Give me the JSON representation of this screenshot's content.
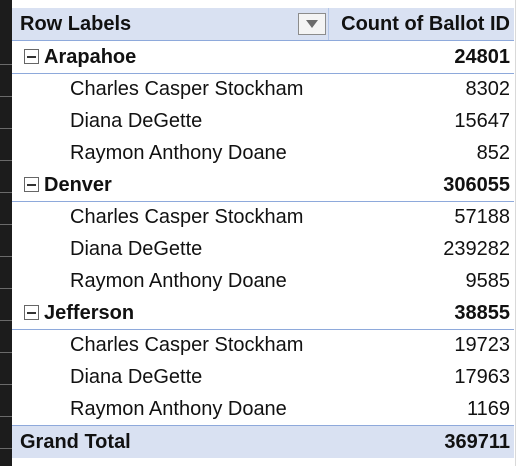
{
  "pivot": {
    "header": {
      "row_labels": "Row Labels",
      "value_field": "Count of Ballot ID"
    },
    "groups": [
      {
        "name": "Arapahoe",
        "total": "24801",
        "items": [
          {
            "label": "Charles Casper Stockham",
            "value": "8302"
          },
          {
            "label": "Diana DeGette",
            "value": "15647"
          },
          {
            "label": "Raymon Anthony Doane",
            "value": "852"
          }
        ]
      },
      {
        "name": "Denver",
        "total": "306055",
        "items": [
          {
            "label": "Charles Casper Stockham",
            "value": "57188"
          },
          {
            "label": "Diana DeGette",
            "value": "239282"
          },
          {
            "label": "Raymon Anthony Doane",
            "value": "9585"
          }
        ]
      },
      {
        "name": "Jefferson",
        "total": "38855",
        "items": [
          {
            "label": "Charles Casper Stockham",
            "value": "19723"
          },
          {
            "label": "Diana DeGette",
            "value": "17963"
          },
          {
            "label": "Raymon Anthony Doane",
            "value": "1169"
          }
        ]
      }
    ],
    "grand_total": {
      "label": "Grand Total",
      "value": "369711"
    }
  },
  "icons": {
    "dropdown": "filter-dropdown-icon",
    "collapse": "collapse-minus-icon"
  },
  "colors": {
    "header_fill": "#d9e1f2",
    "border_blue": "#8ea9db",
    "gutter": "#1c1c1c"
  }
}
